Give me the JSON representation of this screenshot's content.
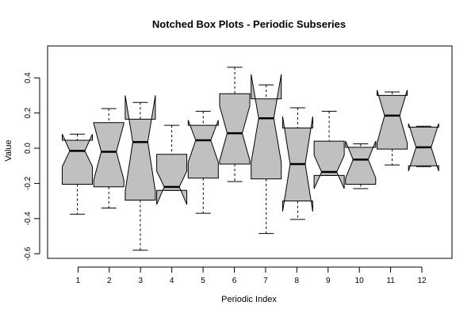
{
  "chart_data": {
    "type": "box",
    "title": "Notched Box Plots - Periodic Subseries",
    "xlabel": "Periodic Index",
    "ylabel": "Value",
    "ylim": [
      -0.62,
      0.58
    ],
    "yticks": [
      0.4,
      0.2,
      0.0,
      -0.2,
      -0.4,
      -0.6
    ],
    "ytick_labels": [
      "0.4",
      "0.2",
      "0.0",
      "-0.2",
      "-0.4",
      "-0.6"
    ],
    "categories": [
      "1",
      "2",
      "3",
      "4",
      "5",
      "6",
      "7",
      "8",
      "9",
      "10",
      "11",
      "12"
    ],
    "box_fill": "#c0c0c0",
    "boxes": [
      {
        "whisker_low": -0.375,
        "q1": -0.205,
        "median": -0.015,
        "q3": 0.045,
        "whisker_high": 0.08,
        "notch_low": -0.105,
        "notch_high": 0.08
      },
      {
        "whisker_low": -0.34,
        "q1": -0.22,
        "median": -0.02,
        "q3": 0.145,
        "whisker_high": 0.225,
        "notch_low": -0.18,
        "notch_high": 0.14
      },
      {
        "whisker_low": -0.58,
        "q1": -0.295,
        "median": 0.035,
        "q3": 0.165,
        "whisker_high": 0.26,
        "notch_low": -0.245,
        "notch_high": 0.3
      },
      {
        "whisker_low": -0.24,
        "q1": -0.24,
        "median": -0.22,
        "q3": -0.035,
        "whisker_high": 0.13,
        "notch_low": -0.32,
        "notch_high": -0.13
      },
      {
        "whisker_low": -0.37,
        "q1": -0.17,
        "median": 0.045,
        "q3": 0.13,
        "whisker_high": 0.21,
        "notch_low": -0.08,
        "notch_high": 0.16
      },
      {
        "whisker_low": -0.19,
        "q1": -0.09,
        "median": 0.085,
        "q3": 0.31,
        "whisker_high": 0.46,
        "notch_low": -0.07,
        "notch_high": 0.24
      },
      {
        "whisker_low": -0.485,
        "q1": -0.175,
        "median": 0.17,
        "q3": 0.28,
        "whisker_high": 0.36,
        "notch_low": -0.08,
        "notch_high": 0.42
      },
      {
        "whisker_low": -0.405,
        "q1": -0.3,
        "median": -0.09,
        "q3": 0.115,
        "whisker_high": 0.23,
        "notch_low": -0.36,
        "notch_high": 0.18
      },
      {
        "whisker_low": -0.155,
        "q1": -0.155,
        "median": -0.135,
        "q3": 0.04,
        "whisker_high": 0.21,
        "notch_low": -0.23,
        "notch_high": -0.04
      },
      {
        "whisker_low": -0.23,
        "q1": -0.205,
        "median": -0.065,
        "q3": 0.005,
        "whisker_high": 0.025,
        "notch_low": -0.17,
        "notch_high": 0.04
      },
      {
        "whisker_low": -0.095,
        "q1": -0.005,
        "median": 0.185,
        "q3": 0.3,
        "whisker_high": 0.32,
        "notch_low": 0.03,
        "notch_high": 0.33
      },
      {
        "whisker_low": -0.105,
        "q1": -0.1,
        "median": 0.005,
        "q3": 0.12,
        "whisker_high": 0.125,
        "notch_low": -0.13,
        "notch_high": 0.14
      }
    ]
  }
}
